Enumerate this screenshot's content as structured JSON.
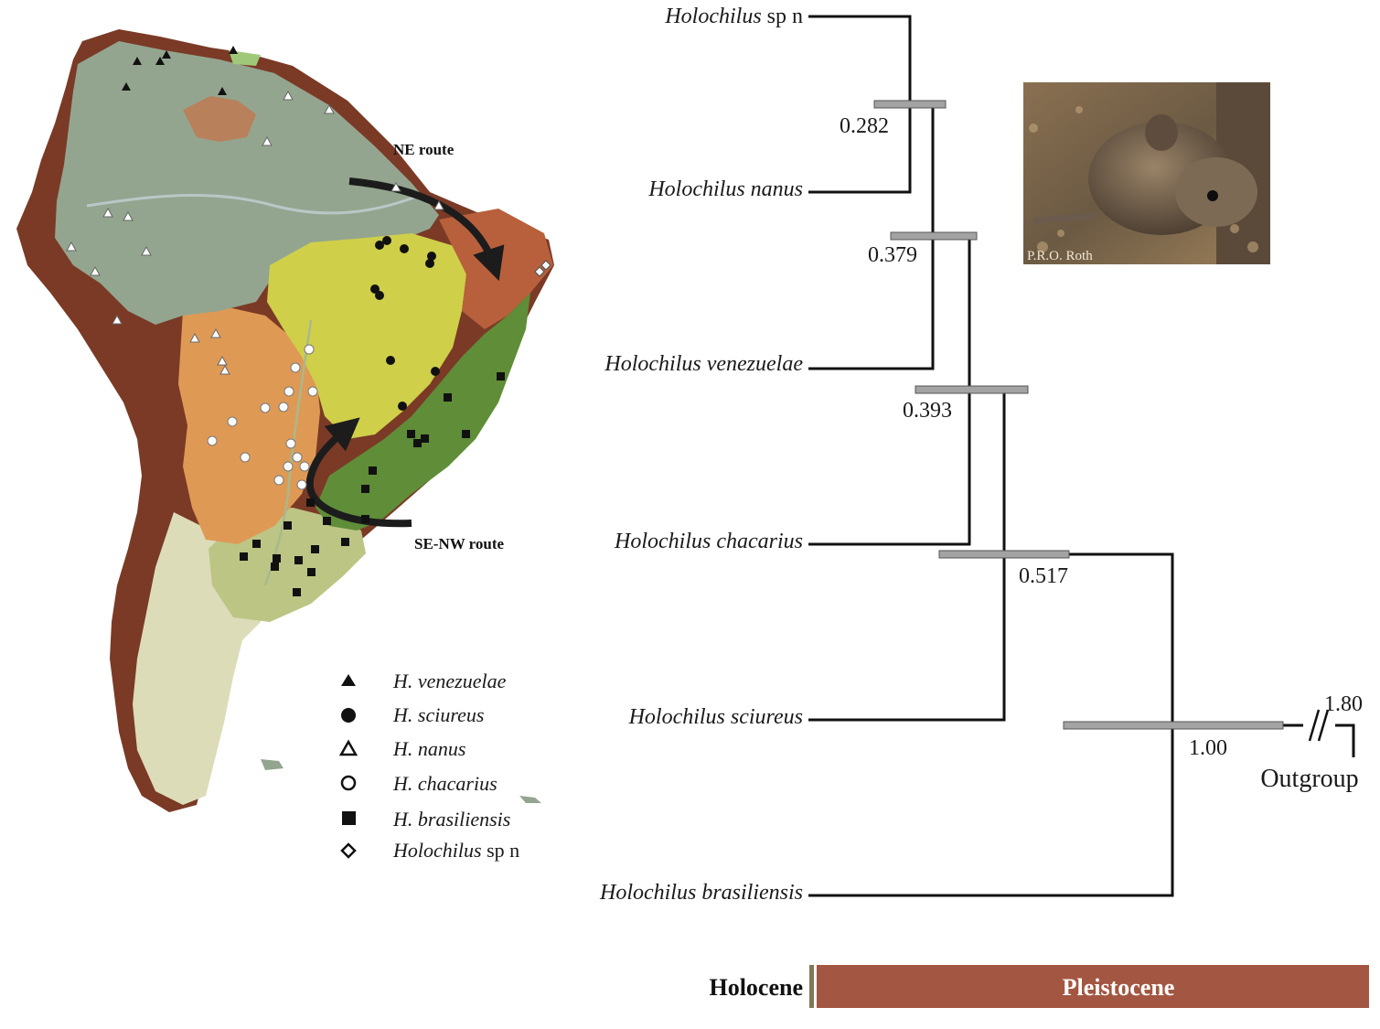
{
  "routes": {
    "ne": "NE route",
    "se": "SE-NW route"
  },
  "legend": [
    {
      "genus": "H.",
      "species": "venezuelae",
      "marker": "filled-triangle"
    },
    {
      "genus": "H.",
      "species": "sciureus",
      "marker": "filled-circle"
    },
    {
      "genus": "H.",
      "species": "nanus",
      "marker": "open-triangle"
    },
    {
      "genus": "H.",
      "species": "chacarius",
      "marker": "open-circle"
    },
    {
      "genus": "H.",
      "species": "brasiliensis",
      "marker": "filled-square"
    },
    {
      "genus": "Holochilus",
      "species": "sp n",
      "marker": "open-diamond"
    }
  ],
  "tree": {
    "taxa": [
      {
        "genus": "Holochilus",
        "epithet": "sp n"
      },
      {
        "genus": "Holochilus",
        "epithet": "nanus"
      },
      {
        "genus": "Holochilus",
        "epithet": "venezuelae"
      },
      {
        "genus": "Holochilus",
        "epithet": "chacarius"
      },
      {
        "genus": "Holochilus",
        "epithet": "sciureus"
      },
      {
        "genus": "Holochilus",
        "epithet": "brasiliensis"
      }
    ],
    "node_ages": [
      "0.282",
      "0.379",
      "0.393",
      "0.517",
      "1.00"
    ],
    "root_age": "1.80",
    "outgroup": "Outgroup"
  },
  "photo_credit": "P.R.O. Roth",
  "timescale": {
    "holocene": "Holocene",
    "pleistocene": "Pleistocene"
  },
  "colors": {
    "andes": "#7a3a26",
    "amazon": "#93a58f",
    "cerrado": "#cfcf4a",
    "atlantic_forest": "#5f8d38",
    "caatinga": "#b8603c",
    "chaco": "#de9a55",
    "pampas": "#bcc584",
    "patagonia": "#dcdcb9",
    "ci_bar": "#a3a3a3",
    "pleistocene": "#a35641"
  }
}
